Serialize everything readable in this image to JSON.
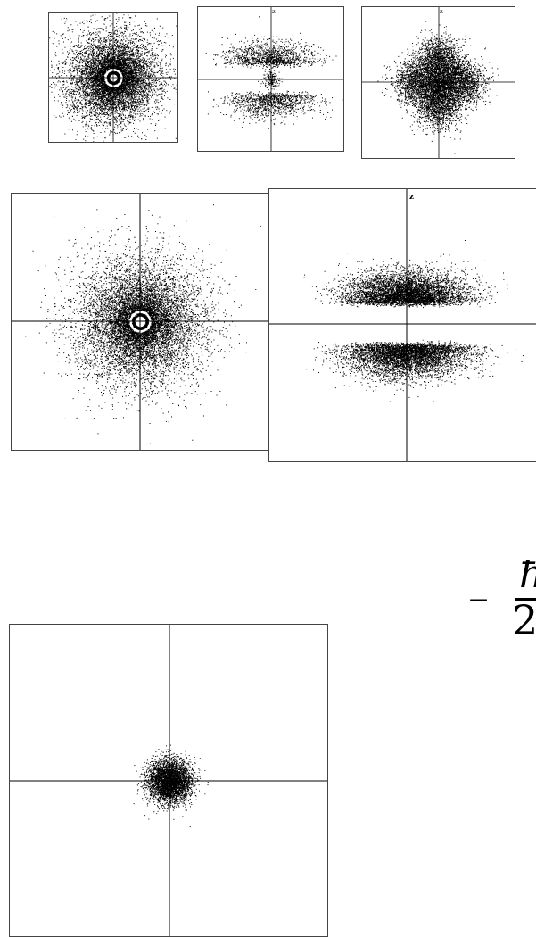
{
  "panels": [
    {
      "id": "s-small",
      "axis_label": "",
      "orbital": "s-ring"
    },
    {
      "id": "pz-small",
      "axis_label": "z",
      "orbital": "pz-dot"
    },
    {
      "id": "d-small",
      "axis_label": "z",
      "orbital": "d-clover"
    },
    {
      "id": "s-large",
      "axis_label": "",
      "orbital": "s-ring"
    },
    {
      "id": "pz-large",
      "axis_label": "z",
      "orbital": "pz"
    },
    {
      "id": "1s-bottom",
      "axis_label": "",
      "orbital": "1s"
    }
  ],
  "formula": {
    "minus": "−",
    "numerator_fragment": "ħ",
    "denominator_fragment": "2"
  }
}
